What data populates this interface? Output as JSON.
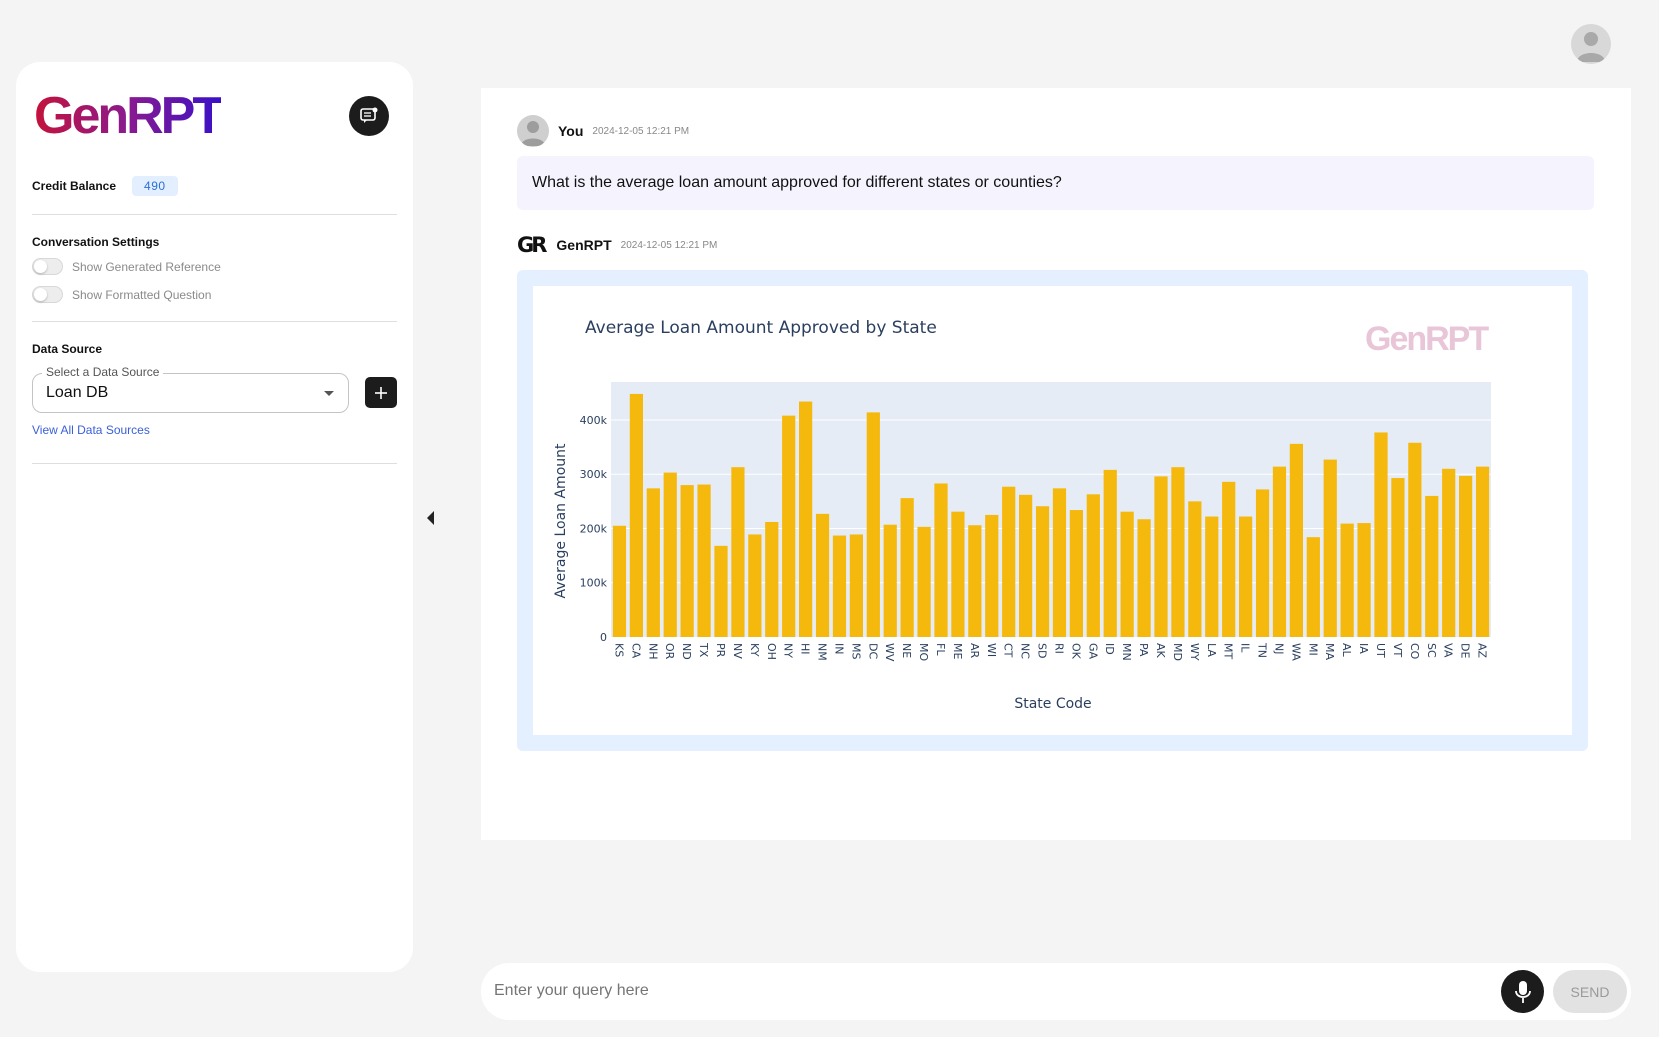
{
  "sidebar": {
    "logo_text": "GenRPT",
    "new_chat_icon": "chat-bubble-icon",
    "credit_label": "Credit Balance",
    "credit_value": "490",
    "conversation_settings_title": "Conversation Settings",
    "toggles": [
      {
        "label": "Show Generated Reference",
        "on": false
      },
      {
        "label": "Show Formatted Question",
        "on": false
      }
    ],
    "data_source_title": "Data Source",
    "select_legend": "Select a Data Source",
    "select_value": "Loan DB",
    "view_all_label": "View All Data Sources"
  },
  "chat": {
    "user_name": "You",
    "user_time": "2024-12-05 12:21 PM",
    "question": "What is the average loan amount approved for different states or counties?",
    "bot_mark": "GR",
    "bot_name": "GenRPT",
    "bot_time": "2024-12-05 12:21 PM"
  },
  "input": {
    "placeholder": "Enter your query here",
    "send_label": "SEND"
  },
  "colors": {
    "bar": "#f5b80c",
    "plot_bg": "#e5ecf6",
    "accent": "#2a6fd8"
  },
  "chart_data": {
    "type": "bar",
    "title": "Average Loan Amount Approved by State",
    "watermark": "GenRPT",
    "xlabel": "State Code",
    "ylabel": "Average Loan Amount",
    "ylim": [
      0,
      470000
    ],
    "yticks": [
      0,
      100000,
      200000,
      300000,
      400000
    ],
    "ytick_labels": [
      "0",
      "100k",
      "200k",
      "300k",
      "400k"
    ],
    "grid": true,
    "categories": [
      "KS",
      "CA",
      "NH",
      "OR",
      "ND",
      "TX",
      "PR",
      "NV",
      "KY",
      "OH",
      "NY",
      "HI",
      "NM",
      "IN",
      "MS",
      "DC",
      "WV",
      "NE",
      "MO",
      "FL",
      "ME",
      "AR",
      "WI",
      "CT",
      "NC",
      "SD",
      "RI",
      "OK",
      "GA",
      "ID",
      "MN",
      "PA",
      "AK",
      "MD",
      "WY",
      "LA",
      "MT",
      "IL",
      "TN",
      "NJ",
      "WA",
      "MI",
      "MA",
      "AL",
      "IA",
      "UT",
      "VT",
      "CO",
      "SC",
      "VA",
      "DE",
      "AZ"
    ],
    "values": [
      205000,
      448000,
      274000,
      303000,
      280000,
      281000,
      168000,
      313000,
      189000,
      212000,
      408000,
      434000,
      227000,
      187000,
      189000,
      414000,
      207000,
      256000,
      203000,
      283000,
      231000,
      206000,
      225000,
      277000,
      262000,
      241000,
      274000,
      234000,
      263000,
      308000,
      231000,
      217000,
      296000,
      313000,
      250000,
      222000,
      286000,
      222000,
      272000,
      314000,
      356000,
      184000,
      327000,
      209000,
      210000,
      377000,
      293000,
      358000,
      260000,
      310000,
      297000,
      314000
    ]
  }
}
